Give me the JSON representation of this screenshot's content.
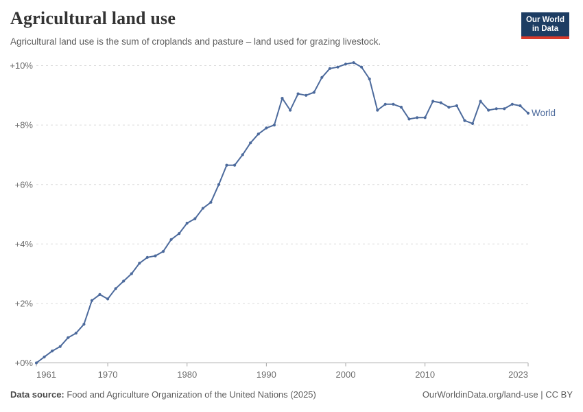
{
  "logo": {
    "line1": "Our World",
    "line2": "in Data"
  },
  "chart_data": {
    "type": "line",
    "title": "Agricultural land use",
    "subtitle": "Agricultural land use is the sum of croplands and pasture – land used for grazing livestock.",
    "entity_label": "World",
    "line_color": "#4c6a9c",
    "xlim": [
      1961,
      2023
    ],
    "ylim": [
      0,
      10
    ],
    "grid": "horizontal dashed",
    "legend_position": "end-of-line",
    "xticks": [
      {
        "value": 1961,
        "label": "1961"
      },
      {
        "value": 1970,
        "label": "1970"
      },
      {
        "value": 1980,
        "label": "1980"
      },
      {
        "value": 1990,
        "label": "1990"
      },
      {
        "value": 2000,
        "label": "2000"
      },
      {
        "value": 2010,
        "label": "2010"
      },
      {
        "value": 2023,
        "label": "2023"
      }
    ],
    "yticks": [
      {
        "value": 0,
        "label": "+0%"
      },
      {
        "value": 2,
        "label": "+2%"
      },
      {
        "value": 4,
        "label": "+4%"
      },
      {
        "value": 6,
        "label": "+6%"
      },
      {
        "value": 8,
        "label": "+8%"
      },
      {
        "value": 10,
        "label": "+10%"
      }
    ],
    "series": [
      {
        "name": "World",
        "years": [
          1961,
          1962,
          1963,
          1964,
          1965,
          1966,
          1967,
          1968,
          1969,
          1970,
          1971,
          1972,
          1973,
          1974,
          1975,
          1976,
          1977,
          1978,
          1979,
          1980,
          1981,
          1982,
          1983,
          1984,
          1985,
          1986,
          1987,
          1988,
          1989,
          1990,
          1991,
          1992,
          1993,
          1994,
          1995,
          1996,
          1997,
          1998,
          1999,
          2000,
          2001,
          2002,
          2003,
          2004,
          2005,
          2006,
          2007,
          2008,
          2009,
          2010,
          2011,
          2012,
          2013,
          2014,
          2015,
          2016,
          2017,
          2018,
          2019,
          2020,
          2021,
          2022,
          2023
        ],
        "values": [
          0,
          0.2,
          0.4,
          0.55,
          0.85,
          1.0,
          1.3,
          2.1,
          2.3,
          2.15,
          2.5,
          2.75,
          3.0,
          3.35,
          3.55,
          3.6,
          3.75,
          4.15,
          4.35,
          4.7,
          4.85,
          5.2,
          5.4,
          6.0,
          6.65,
          6.65,
          7.0,
          7.4,
          7.7,
          7.9,
          8.0,
          8.9,
          8.5,
          9.05,
          9.0,
          9.1,
          9.6,
          9.9,
          9.95,
          10.05,
          10.1,
          9.95,
          9.55,
          8.5,
          8.7,
          8.7,
          8.6,
          8.2,
          8.25,
          8.25,
          8.8,
          8.75,
          8.6,
          8.65,
          8.15,
          8.05,
          8.8,
          8.5,
          8.55,
          8.55,
          8.7,
          8.65,
          8.4
        ]
      }
    ]
  },
  "footer": {
    "datasource_label": "Data source:",
    "datasource_text": " Food and Agriculture Organization of the United Nations (2025)",
    "url": "OurWorldinData.org/land-use",
    "license": " | CC BY"
  }
}
